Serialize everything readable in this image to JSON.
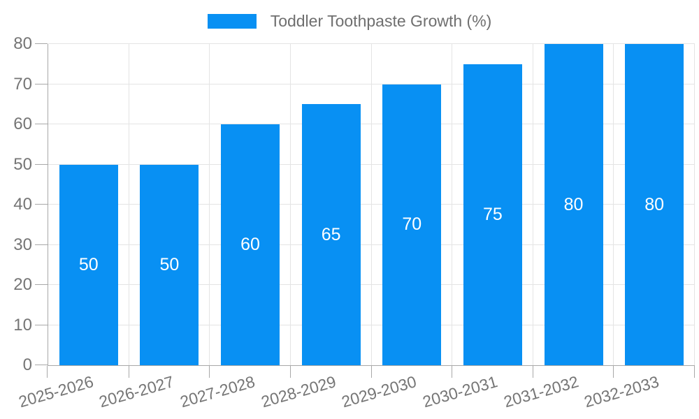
{
  "chart_data": {
    "type": "bar",
    "title": "Toddler Toothpaste Growth (%)",
    "categories": [
      "2025-2026",
      "2026-2027",
      "2027-2028",
      "2028-2029",
      "2029-2030",
      "2030-2031",
      "2031-2032",
      "2032-2033"
    ],
    "values": [
      50,
      50,
      60,
      65,
      70,
      75,
      80,
      80
    ],
    "xlabel": "",
    "ylabel": "",
    "ylim": [
      0,
      80
    ],
    "ytick_step": 10,
    "ytick_labels": [
      "0",
      "10",
      "20",
      "30",
      "40",
      "50",
      "60",
      "70",
      "80"
    ],
    "grid": true,
    "legend_position": "top-center",
    "bar_value_labels": "centered-inside-white",
    "colors": {
      "bar": "#0890F3",
      "grid": "#E4E4E4",
      "axis": "#A8A8A8",
      "tick_label": "#757575",
      "legend_text": "#6F6F6F",
      "bar_label": "#FFFFFF",
      "background": "#FFFFFF"
    }
  }
}
